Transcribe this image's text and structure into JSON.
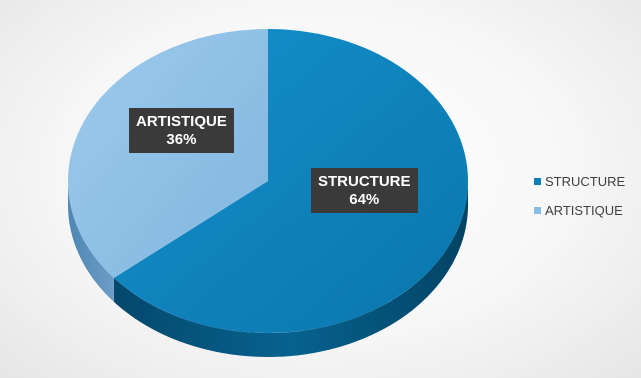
{
  "chart_data": {
    "type": "pie",
    "title": "",
    "categories": [
      "STRUCTURE",
      "ARTISTIQUE"
    ],
    "values": [
      64,
      36
    ],
    "data_labels": [
      {
        "category": "STRUCTURE",
        "percent": "64%"
      },
      {
        "category": "ARTISTIQUE",
        "percent": "36%"
      }
    ],
    "colors": {
      "STRUCTURE": "#0e7fb9",
      "ARTISTIQUE": "#8bbce3"
    },
    "legend": {
      "placement": "right",
      "entries": [
        "STRUCTURE",
        "ARTISTIQUE"
      ]
    },
    "style": "3d"
  }
}
